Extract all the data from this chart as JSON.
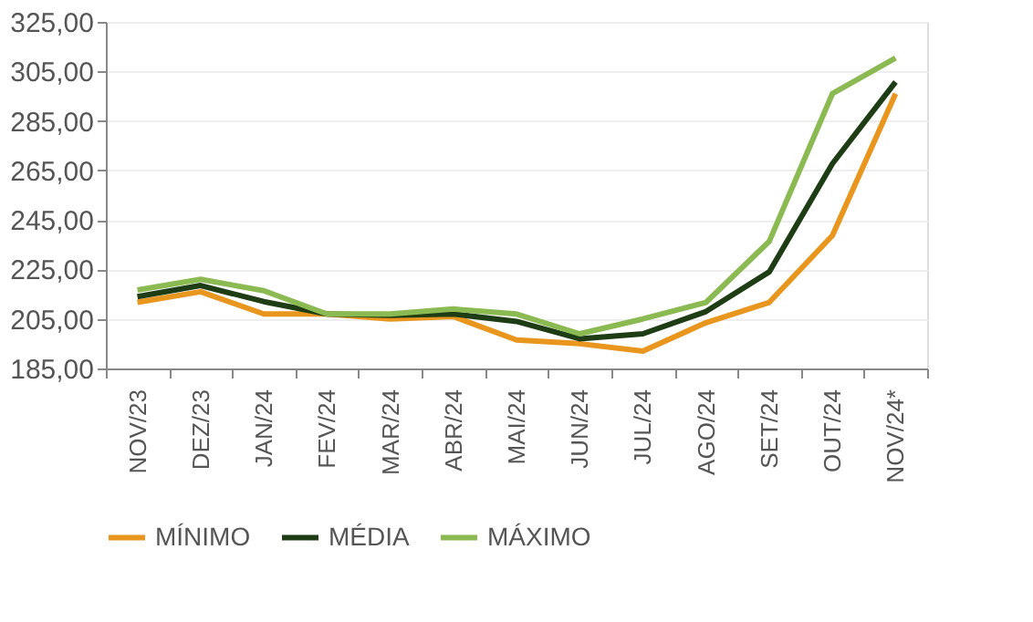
{
  "chart_data": {
    "type": "line",
    "categories": [
      "NOV/23",
      "DEZ/23",
      "JAN/24",
      "FEV/24",
      "MAR/24",
      "ABR/24",
      "MAI/24",
      "JUN/24",
      "JUL/24",
      "AGO/24",
      "SET/24",
      "OUT/24",
      "NOV/24*"
    ],
    "series": [
      {
        "name": "MÍNIMO",
        "color": "#e8961e",
        "values": [
          211.7,
          216,
          207,
          207,
          205,
          206,
          196.5,
          195,
          192,
          203.5,
          211.7,
          238.7,
          296
        ]
      },
      {
        "name": "MÉDIA",
        "color": "#1e3d14",
        "values": [
          214,
          218.5,
          212,
          207,
          206.5,
          207,
          204,
          197,
          199,
          208,
          224,
          267.7,
          300.7
        ]
      },
      {
        "name": "MÁXIMO",
        "color": "#8cba52",
        "values": [
          216.7,
          221,
          216.4,
          207,
          207,
          209,
          207,
          199,
          205,
          211.7,
          236.3,
          296,
          310.4
        ]
      }
    ],
    "ylim": [
      185,
      325
    ],
    "yticks": [
      {
        "value": 185,
        "label": "185,00"
      },
      {
        "value": 205,
        "label": "205,00"
      },
      {
        "value": 225,
        "label": "225,00"
      },
      {
        "value": 245,
        "label": "245,00"
      },
      {
        "value": 265,
        "label": "265,00"
      },
      {
        "value": 285,
        "label": "285,00"
      },
      {
        "value": 305,
        "label": "305,00"
      },
      {
        "value": 325,
        "label": "325,00"
      }
    ],
    "grid": "y",
    "legend": "bottom",
    "marker": "none",
    "line_style": "solid"
  }
}
